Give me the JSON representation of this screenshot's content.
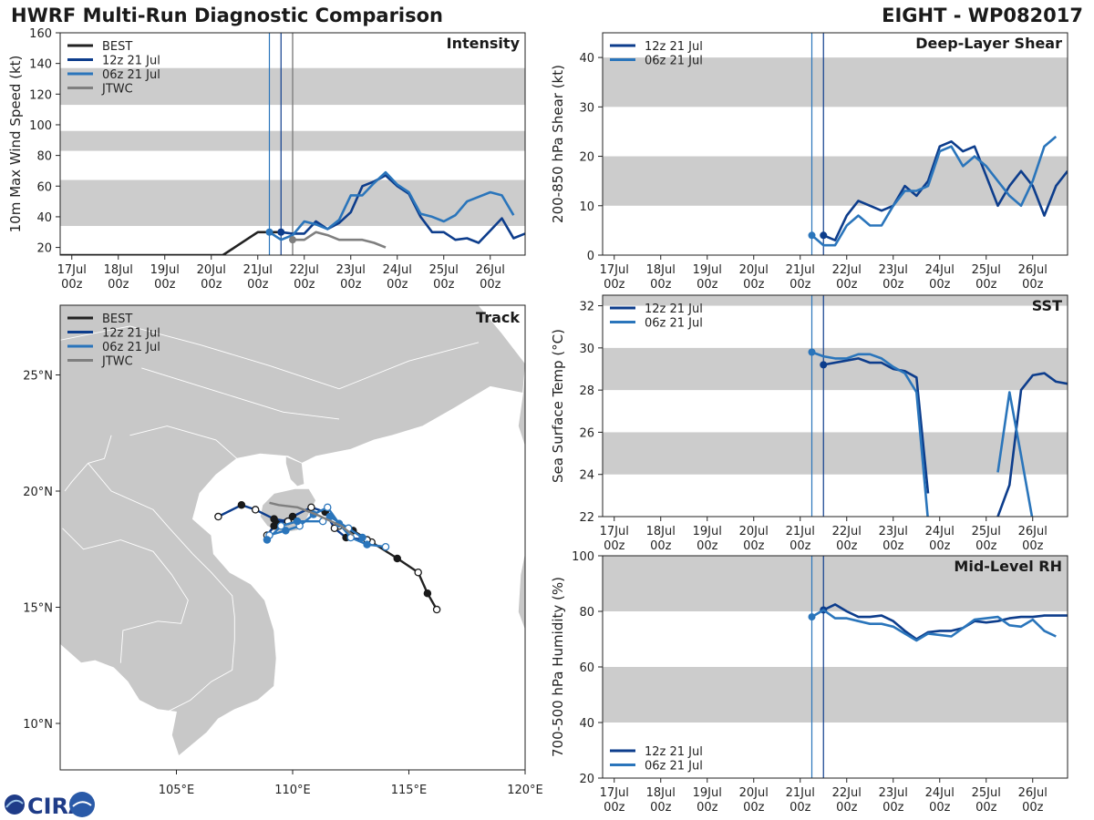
{
  "header": {
    "title_left": "HWRF Multi-Run Diagnostic Comparison",
    "title_right": "EIGHT - WP082017"
  },
  "logo": {
    "text": "CIRA"
  },
  "colors": {
    "best": "#222222",
    "run12": "#0d3d8c",
    "run06": "#2a75bb",
    "jtwc": "#7f7f7f",
    "band": "#cccccc"
  },
  "legend_full": [
    "BEST",
    "12z 21 Jul",
    "06z 21 Jul",
    "JTWC"
  ],
  "legend_runs": [
    "12z 21 Jul",
    "06z 21 Jul"
  ],
  "time_axis": {
    "day_labels": [
      "17Jul",
      "18Jul",
      "19Jul",
      "20Jul",
      "21Jul",
      "22Jul",
      "23Jul",
      "24Jul",
      "25Jul",
      "26Jul"
    ],
    "hour_label": "00z",
    "init_lines_day": [
      21.25,
      21.5
    ],
    "jtwc_line_day": 21.75
  },
  "chart_data": [
    {
      "name": "intensity",
      "type": "line",
      "title": "Intensity",
      "ylabel": "10m Max Wind Speed (kt)",
      "xlim_day": [
        16.75,
        26.75
      ],
      "ylim": [
        15,
        160
      ],
      "yticks": [
        20,
        40,
        60,
        80,
        100,
        120,
        140,
        160
      ],
      "bands": [
        [
          34,
          64
        ],
        [
          83,
          96
        ],
        [
          113,
          137
        ]
      ],
      "series": [
        {
          "name": "BEST",
          "key": "best",
          "x": [
            16.75,
            20.0,
            20.25,
            20.5,
            20.75,
            21.0,
            21.25,
            21.5
          ],
          "y": [
            15,
            15,
            15,
            20,
            25,
            30,
            30,
            30
          ],
          "markers": []
        },
        {
          "name": "12z 21 Jul",
          "key": "run12",
          "x": [
            21.5,
            21.75,
            22.0,
            22.25,
            22.5,
            22.75,
            23.0,
            23.25,
            23.5,
            23.75,
            24.0,
            24.25,
            24.5,
            24.75,
            25.0,
            25.25,
            25.5,
            25.75,
            26.0,
            26.25,
            26.5,
            26.75
          ],
          "y": [
            30,
            29,
            29,
            37,
            32,
            36,
            43,
            60,
            63,
            67,
            60,
            55,
            40,
            30,
            30,
            25,
            26,
            23,
            31,
            39,
            26,
            29
          ],
          "markers": [
            0
          ]
        },
        {
          "name": "06z 21 Jul",
          "key": "run06",
          "x": [
            21.25,
            21.5,
            21.75,
            22.0,
            22.25,
            22.5,
            22.75,
            23.0,
            23.25,
            23.5,
            23.75,
            24.0,
            24.25,
            24.5,
            24.75,
            25.0,
            25.25,
            25.5,
            25.75,
            26.0,
            26.25,
            26.5
          ],
          "y": [
            30,
            25,
            28,
            37,
            35,
            32,
            38,
            54,
            54,
            62,
            69,
            61,
            56,
            42,
            40,
            37,
            41,
            50,
            53,
            56,
            54,
            41
          ],
          "markers": [
            0
          ]
        },
        {
          "name": "JTWC",
          "key": "jtwc",
          "x": [
            21.75,
            22.0,
            22.25,
            22.5,
            22.75,
            23.0,
            23.25,
            23.5,
            23.75
          ],
          "y": [
            25,
            25,
            30,
            28,
            25,
            25,
            25,
            23,
            20
          ],
          "markers": [
            0
          ]
        }
      ]
    },
    {
      "name": "shear",
      "type": "line",
      "title": "Deep-Layer Shear",
      "ylabel": "200-850 hPa Shear (kt)",
      "xlim_day": [
        16.75,
        26.75
      ],
      "ylim": [
        0,
        45
      ],
      "yticks": [
        0,
        10,
        20,
        30,
        40
      ],
      "bands": [
        [
          10,
          20
        ],
        [
          30,
          40
        ]
      ],
      "series": [
        {
          "name": "12z 21 Jul",
          "key": "run12",
          "x": [
            21.5,
            21.75,
            22.0,
            22.25,
            22.5,
            22.75,
            23.0,
            23.25,
            23.5,
            23.75,
            24.0,
            24.25,
            24.5,
            24.75,
            25.0,
            25.25,
            25.5,
            25.75,
            26.0,
            26.25,
            26.5,
            26.75
          ],
          "y": [
            4,
            3,
            8,
            11,
            10,
            9,
            10,
            14,
            12,
            15,
            22,
            23,
            21,
            22,
            16,
            10,
            14,
            17,
            14,
            8,
            14,
            17
          ],
          "markers": [
            0
          ]
        },
        {
          "name": "06z 21 Jul",
          "key": "run06",
          "x": [
            21.25,
            21.5,
            21.75,
            22.0,
            22.25,
            22.5,
            22.75,
            23.0,
            23.25,
            23.5,
            23.75,
            24.0,
            24.25,
            24.5,
            24.75,
            25.0,
            25.25,
            25.5,
            25.75,
            26.0,
            26.25,
            26.5
          ],
          "y": [
            4,
            2,
            2,
            6,
            8,
            6,
            6,
            10,
            13,
            13,
            14,
            21,
            22,
            18,
            20,
            18,
            15,
            12,
            10,
            15,
            22,
            24
          ],
          "markers": [
            0
          ]
        }
      ]
    },
    {
      "name": "sst",
      "type": "line",
      "title": "SST",
      "ylabel": "Sea Surface Temp (°C)",
      "xlim_day": [
        16.75,
        26.75
      ],
      "ylim": [
        22,
        32.5
      ],
      "yticks": [
        22,
        24,
        26,
        28,
        30,
        32
      ],
      "bands": [
        [
          24,
          26
        ],
        [
          28,
          30
        ],
        [
          32,
          32.5
        ]
      ],
      "series": [
        {
          "name": "12z 21 Jul",
          "key": "run12",
          "x": [
            21.5,
            22.0,
            22.25,
            22.5,
            22.75,
            23.0,
            23.25,
            23.5,
            23.75
          ],
          "y": [
            29.2,
            29.4,
            29.5,
            29.3,
            29.3,
            29.0,
            28.9,
            28.6,
            23.1
          ],
          "markers": [
            0
          ]
        },
        {
          "name": "12z 21 Jul (late)",
          "key": "run12",
          "x": [
            25.25,
            25.5,
            25.75,
            26.0,
            26.25,
            26.5,
            26.75
          ],
          "y": [
            22.0,
            23.5,
            28.0,
            28.7,
            28.8,
            28.4,
            28.3
          ],
          "markers": []
        },
        {
          "name": "06z 21 Jul",
          "key": "run06",
          "x": [
            21.25,
            21.5,
            21.75,
            22.0,
            22.25,
            22.5,
            22.75,
            23.0,
            23.25,
            23.5,
            23.75
          ],
          "y": [
            29.8,
            29.6,
            29.5,
            29.5,
            29.7,
            29.7,
            29.5,
            29.1,
            28.8,
            27.9,
            21.8
          ],
          "markers": [
            0
          ]
        },
        {
          "name": "06z 21 Jul (late)",
          "key": "run06",
          "x": [
            25.25,
            25.5,
            25.75,
            26.0
          ],
          "y": [
            24.1,
            27.9,
            24.9,
            21.8
          ],
          "markers": []
        }
      ]
    },
    {
      "name": "rh",
      "type": "line",
      "title": "Mid-Level RH",
      "ylabel": "700-500 hPa Humidity (%)",
      "xlim_day": [
        16.75,
        26.75
      ],
      "ylim": [
        20,
        100
      ],
      "yticks": [
        20,
        40,
        60,
        80,
        100
      ],
      "bands": [
        [
          40,
          60
        ],
        [
          80,
          100
        ]
      ],
      "series": [
        {
          "name": "12z 21 Jul",
          "key": "run12",
          "x": [
            21.5,
            21.75,
            22.0,
            22.25,
            22.5,
            22.75,
            23.0,
            23.25,
            23.5,
            23.75,
            24.0,
            24.25,
            24.5,
            24.75,
            25.0,
            25.25,
            25.5,
            25.75,
            26.0,
            26.25,
            26.5,
            26.75
          ],
          "y": [
            80.5,
            82.5,
            80,
            78,
            78,
            78.5,
            76.5,
            73,
            70,
            72.5,
            73,
            73,
            74,
            76.5,
            76,
            76.5,
            77.5,
            78,
            78,
            78.5,
            78.5,
            78.5
          ],
          "markers": [
            0
          ]
        },
        {
          "name": "06z 21 Jul",
          "key": "run06",
          "x": [
            21.25,
            21.5,
            21.75,
            22.0,
            22.25,
            22.5,
            22.75,
            23.0,
            23.25,
            23.5,
            23.75,
            24.0,
            24.25,
            24.5,
            24.75,
            25.0,
            25.25,
            25.5,
            25.75,
            26.0,
            26.25,
            26.5
          ],
          "y": [
            78,
            80.5,
            77.5,
            77.5,
            76.5,
            75.5,
            75.5,
            74.5,
            72,
            69.5,
            72,
            71.5,
            71,
            74,
            77,
            77.5,
            78,
            75,
            74.5,
            77,
            73,
            71
          ],
          "markers": [
            0
          ]
        }
      ]
    },
    {
      "name": "track",
      "type": "map-track",
      "title": "Track",
      "lon_range": [
        100,
        120
      ],
      "lat_range": [
        8,
        28
      ],
      "xticks": [
        105,
        110,
        115,
        120
      ],
      "yticks": [
        10,
        15,
        20,
        25
      ],
      "xtick_labels": [
        "105°E",
        "110°E",
        "115°E",
        "120°E"
      ],
      "ytick_labels": [
        "10°N",
        "15°N",
        "20°N",
        "25°N"
      ],
      "series": [
        {
          "name": "BEST",
          "key": "best",
          "lon": [
            116.2,
            115.8,
            115.4,
            114.5,
            113.4,
            112.6,
            112.0
          ],
          "lat": [
            14.9,
            15.6,
            16.5,
            17.1,
            17.8,
            18.3,
            18.5
          ],
          "markers": "alt"
        },
        {
          "name": "12z 21 Jul",
          "key": "run12",
          "lon": [
            113.2,
            112.3,
            111.8,
            111.4,
            110.8,
            110.0,
            109.3,
            109.2,
            108.9,
            109.3,
            109.8,
            109.2,
            108.4,
            107.8,
            106.8
          ],
          "lat": [
            17.9,
            18.0,
            18.4,
            19.1,
            19.3,
            18.9,
            18.6,
            18.5,
            18.1,
            18.6,
            18.7,
            18.8,
            19.2,
            19.4,
            18.9
          ],
          "markers": "alt"
        },
        {
          "name": "06z 21 Jul",
          "key": "run06",
          "lon": [
            114.0,
            113.2,
            112.5,
            112.0,
            111.5,
            110.9,
            110.3,
            109.7,
            109.0,
            108.9,
            109.5,
            110.2,
            111.3,
            111.6,
            112.4,
            113.0
          ],
          "lat": [
            17.6,
            17.7,
            18.0,
            18.6,
            19.3,
            19.0,
            18.5,
            18.3,
            18.1,
            17.9,
            18.5,
            18.7,
            18.7,
            18.9,
            18.4,
            18.0
          ],
          "markers": "alt"
        },
        {
          "name": "JTWC",
          "key": "jtwc",
          "lon": [
            112.6,
            112.1,
            111.0,
            110.2,
            109.4,
            109.0
          ],
          "lat": [
            18.1,
            18.5,
            19.0,
            19.3,
            19.4,
            19.5
          ],
          "markers": "none"
        }
      ]
    }
  ]
}
